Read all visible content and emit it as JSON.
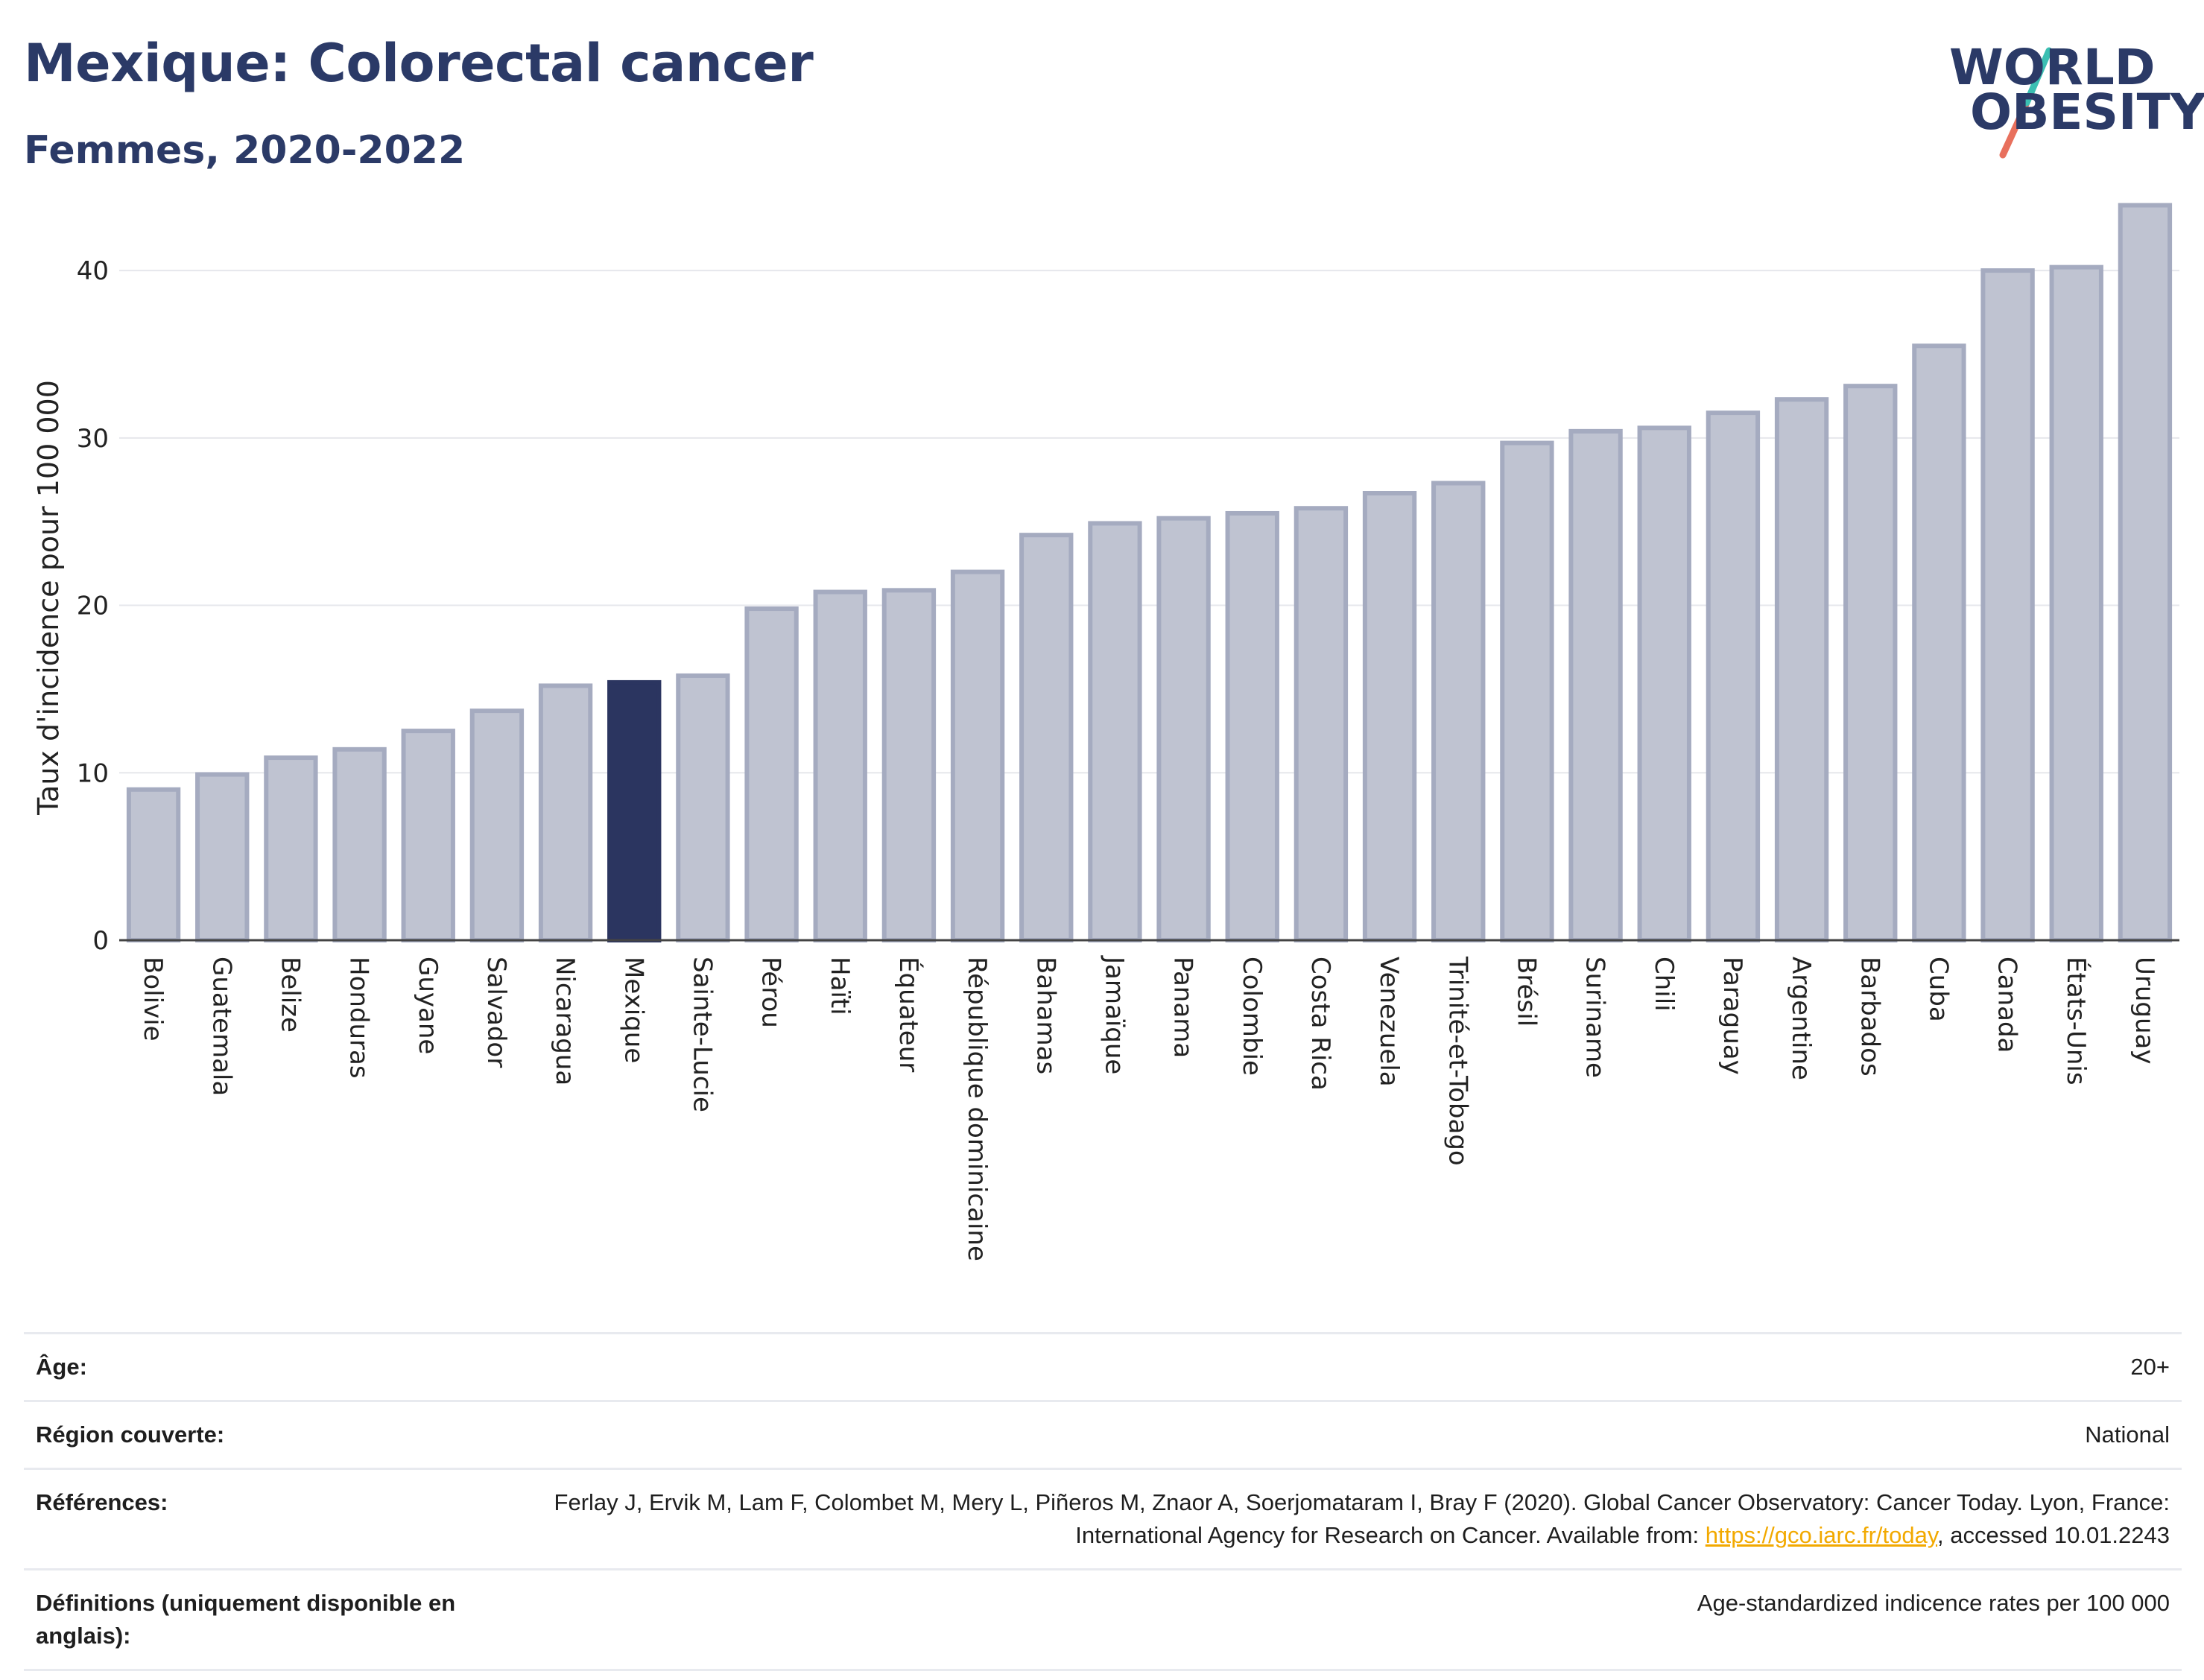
{
  "title": "Mexique: Colorectal cancer",
  "subtitle": "Femmes, 2020-2022",
  "logo": {
    "line1": "WORLD",
    "line2": "OBESITY"
  },
  "colors": {
    "highlight": "#2b3560",
    "bar_fill": "#bfc3d1",
    "bar_stroke": "#a5abc0",
    "title": "#2b3a67",
    "link": "#f2a900",
    "logo_teal": "#3bbfb2",
    "logo_coral": "#e8705d"
  },
  "chart_data": {
    "type": "bar",
    "ylabel": "Taux d'incidence pour 100 000",
    "ylim": [
      0,
      44.5
    ],
    "yticks": [
      0,
      10,
      20,
      30,
      40
    ],
    "grid": true,
    "highlight_category": "Mexique",
    "categories": [
      "Bolivie",
      "Guatemala",
      "Belize",
      "Honduras",
      "Guyane",
      "Salvador",
      "Nicaragua",
      "Mexique",
      "Sainte-Lucie",
      "Pérou",
      "Haïti",
      "Équateur",
      "République dominicaine",
      "Bahamas",
      "Jamaïque",
      "Panama",
      "Colombie",
      "Costa Rica",
      "Venezuela",
      "Trinité-et-Tobago",
      "Brésil",
      "Suriname",
      "Chili",
      "Paraguay",
      "Argentine",
      "Barbados",
      "Cuba",
      "Canada",
      "États-Unis",
      "Uruguay"
    ],
    "values": [
      9.0,
      9.9,
      10.9,
      11.4,
      12.5,
      13.7,
      15.2,
      15.4,
      15.8,
      19.8,
      20.8,
      20.9,
      22.0,
      24.2,
      24.9,
      25.2,
      25.5,
      25.8,
      26.7,
      27.3,
      29.7,
      30.4,
      30.6,
      31.5,
      32.3,
      33.1,
      35.5,
      40.0,
      40.2,
      43.9
    ]
  },
  "meta": [
    {
      "key": "Âge:",
      "value": "20+"
    },
    {
      "key": "Région couverte:",
      "value": "National"
    },
    {
      "key": "Références:",
      "value_before": "Ferlay J, Ervik M, Lam F, Colombet M, Mery L, Piñeros M, Znaor A, Soerjomataram I, Bray F (2020). Global Cancer Observatory: Cancer Today. Lyon, France: International Agency for Research on Cancer. Available from: ",
      "link": "https://gco.iarc.fr/today",
      "value_after": ", accessed 10.01.2243"
    },
    {
      "key": "Définitions (uniquement disponible en anglais):",
      "value": "Age-standardized indicence rates per 100 000"
    }
  ]
}
